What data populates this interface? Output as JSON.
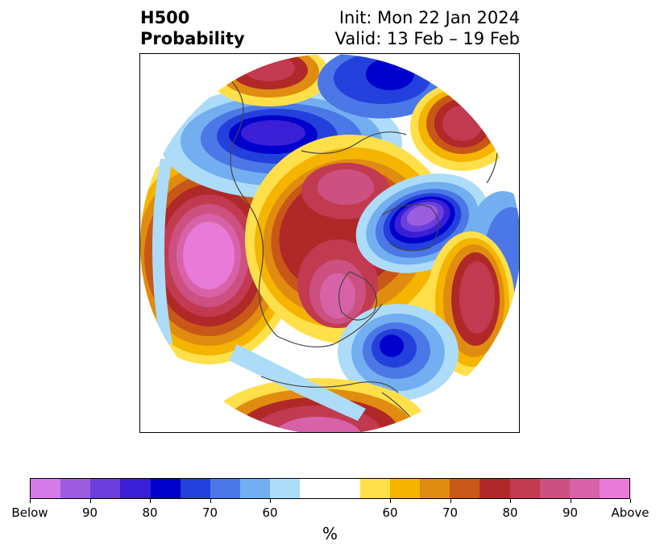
{
  "title": {
    "left_line1": "H500",
    "left_line2": "Probability",
    "right_line1": "Init: Mon 22 Jan 2024",
    "right_line2": "Valid: 13 Feb – 19 Feb"
  },
  "colorbar": {
    "colors": [
      "#d47be8",
      "#9c5ce0",
      "#6a3fdc",
      "#3a1fd6",
      "#0000cc",
      "#2440dc",
      "#4b78e6",
      "#73aef0",
      "#acdcf8",
      "#ffffff",
      "#ffffff",
      "#ffe04a",
      "#f4b400",
      "#e08c10",
      "#c85818",
      "#b02828",
      "#c23a50",
      "#cc5080",
      "#d862a8",
      "#e87ad8"
    ],
    "tick_labels": [
      "Below",
      "90",
      "80",
      "70",
      "60",
      "60",
      "70",
      "80",
      "90",
      "Above"
    ],
    "units": "%"
  },
  "map": {
    "legend_semantics": "below-normal blue/purple, above-normal yellow/red/pink"
  }
}
